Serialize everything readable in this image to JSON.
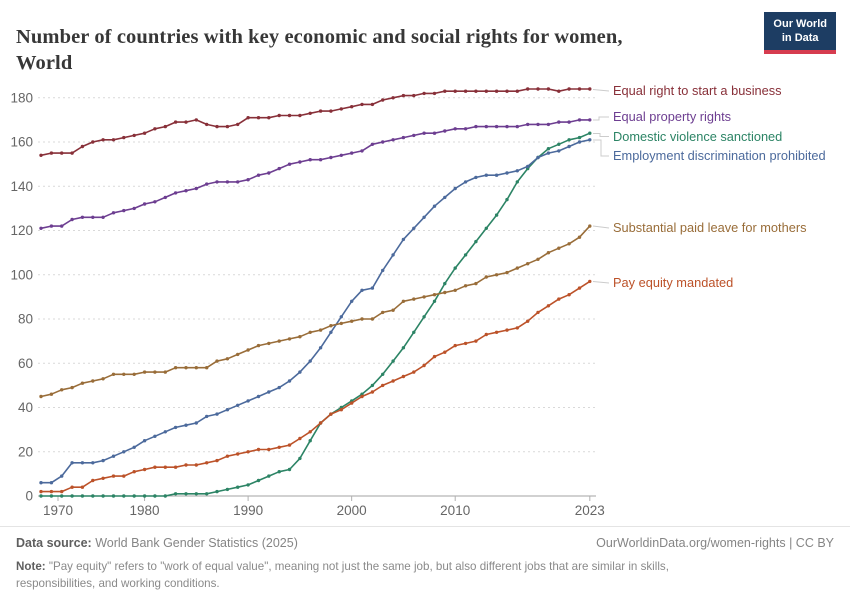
{
  "header": {
    "title": "Number of countries with key economic and social rights for women,\nWorld",
    "logo": {
      "line1": "Our World",
      "line2": "in Data"
    }
  },
  "chart_data": {
    "type": "line",
    "title": "Number of countries with key economic and social rights for women, World",
    "x_start": 1970,
    "x_end": 2023,
    "x_ticks": [
      1970,
      1980,
      1990,
      2000,
      2010,
      2023
    ],
    "y_ticks": [
      0,
      20,
      40,
      60,
      80,
      100,
      120,
      140,
      160,
      180
    ],
    "ylim": [
      0,
      180
    ],
    "grid": "dashed-horizontal",
    "legend_position": "right-of-lines",
    "series": [
      {
        "id": "business",
        "label": "Equal right to start a business",
        "color": "#883039",
        "values": [
          154,
          155,
          155,
          155,
          158,
          160,
          161,
          161,
          162,
          163,
          164,
          166,
          167,
          169,
          169,
          170,
          168,
          167,
          167,
          168,
          171,
          171,
          171,
          172,
          172,
          172,
          173,
          174,
          174,
          175,
          176,
          177,
          177,
          179,
          180,
          181,
          181,
          182,
          182,
          183,
          183,
          183,
          183,
          183,
          183,
          183,
          183,
          184,
          184,
          184,
          183,
          184,
          184,
          184
        ]
      },
      {
        "id": "property",
        "label": "Equal property rights",
        "color": "#6D3E91",
        "values": [
          121,
          122,
          122,
          125,
          126,
          126,
          126,
          128,
          129,
          130,
          132,
          133,
          135,
          137,
          138,
          139,
          141,
          142,
          142,
          142,
          143,
          145,
          146,
          148,
          150,
          151,
          152,
          152,
          153,
          154,
          155,
          156,
          159,
          160,
          161,
          162,
          163,
          164,
          164,
          165,
          166,
          166,
          167,
          167,
          167,
          167,
          167,
          168,
          168,
          168,
          169,
          169,
          170,
          170
        ]
      },
      {
        "id": "domestic_violence",
        "label": "Domestic violence sanctioned",
        "color": "#2C8465",
        "values": [
          0,
          0,
          0,
          0,
          0,
          0,
          0,
          0,
          0,
          0,
          0,
          0,
          0,
          1,
          1,
          1,
          1,
          2,
          3,
          4,
          5,
          7,
          9,
          11,
          12,
          17,
          25,
          33,
          37,
          40,
          43,
          46,
          50,
          55,
          61,
          67,
          74,
          81,
          88,
          96,
          103,
          109,
          115,
          121,
          127,
          134,
          142,
          148,
          153,
          157,
          159,
          161,
          162,
          164
        ]
      },
      {
        "id": "employment",
        "label": "Employment discrimination prohibited",
        "color": "#4C6A9C",
        "values": [
          6,
          6,
          9,
          15,
          15,
          15,
          16,
          18,
          20,
          22,
          25,
          27,
          29,
          31,
          32,
          33,
          36,
          37,
          39,
          41,
          43,
          45,
          47,
          49,
          52,
          56,
          61,
          67,
          74,
          81,
          88,
          93,
          94,
          102,
          109,
          116,
          121,
          126,
          131,
          135,
          139,
          142,
          144,
          145,
          145,
          146,
          147,
          149,
          153,
          155,
          156,
          158,
          160,
          161
        ]
      },
      {
        "id": "paid_leave",
        "label": "Substantial paid leave for mothers",
        "color": "#996D39",
        "values": [
          45,
          46,
          48,
          49,
          51,
          52,
          53,
          55,
          55,
          55,
          56,
          56,
          56,
          58,
          58,
          58,
          58,
          61,
          62,
          64,
          66,
          68,
          69,
          70,
          71,
          72,
          74,
          75,
          77,
          78,
          79,
          80,
          80,
          83,
          84,
          88,
          89,
          90,
          91,
          92,
          93,
          95,
          96,
          99,
          100,
          101,
          103,
          105,
          107,
          110,
          112,
          114,
          117,
          122
        ]
      },
      {
        "id": "pay_equity",
        "label": "Pay equity mandated",
        "color": "#BC5229",
        "values": [
          2,
          2,
          2,
          4,
          4,
          7,
          8,
          9,
          9,
          11,
          12,
          13,
          13,
          13,
          14,
          14,
          15,
          16,
          18,
          19,
          20,
          21,
          21,
          22,
          23,
          26,
          29,
          33,
          37,
          39,
          42,
          45,
          47,
          50,
          52,
          54,
          56,
          59,
          63,
          65,
          68,
          69,
          70,
          73,
          74,
          75,
          76,
          79,
          83,
          86,
          89,
          91,
          94,
          97
        ]
      }
    ]
  },
  "footer": {
    "source_label": "Data source:",
    "source_value": "World Bank Gender Statistics (2025)",
    "attribution": "OurWorldinData.org/women-rights | CC BY",
    "note_label": "Note:",
    "note_text": "\"Pay equity\" refers to \"work of equal value\", meaning not just the same job, but also different jobs that are similar in skills, responsibilities, and working conditions."
  }
}
